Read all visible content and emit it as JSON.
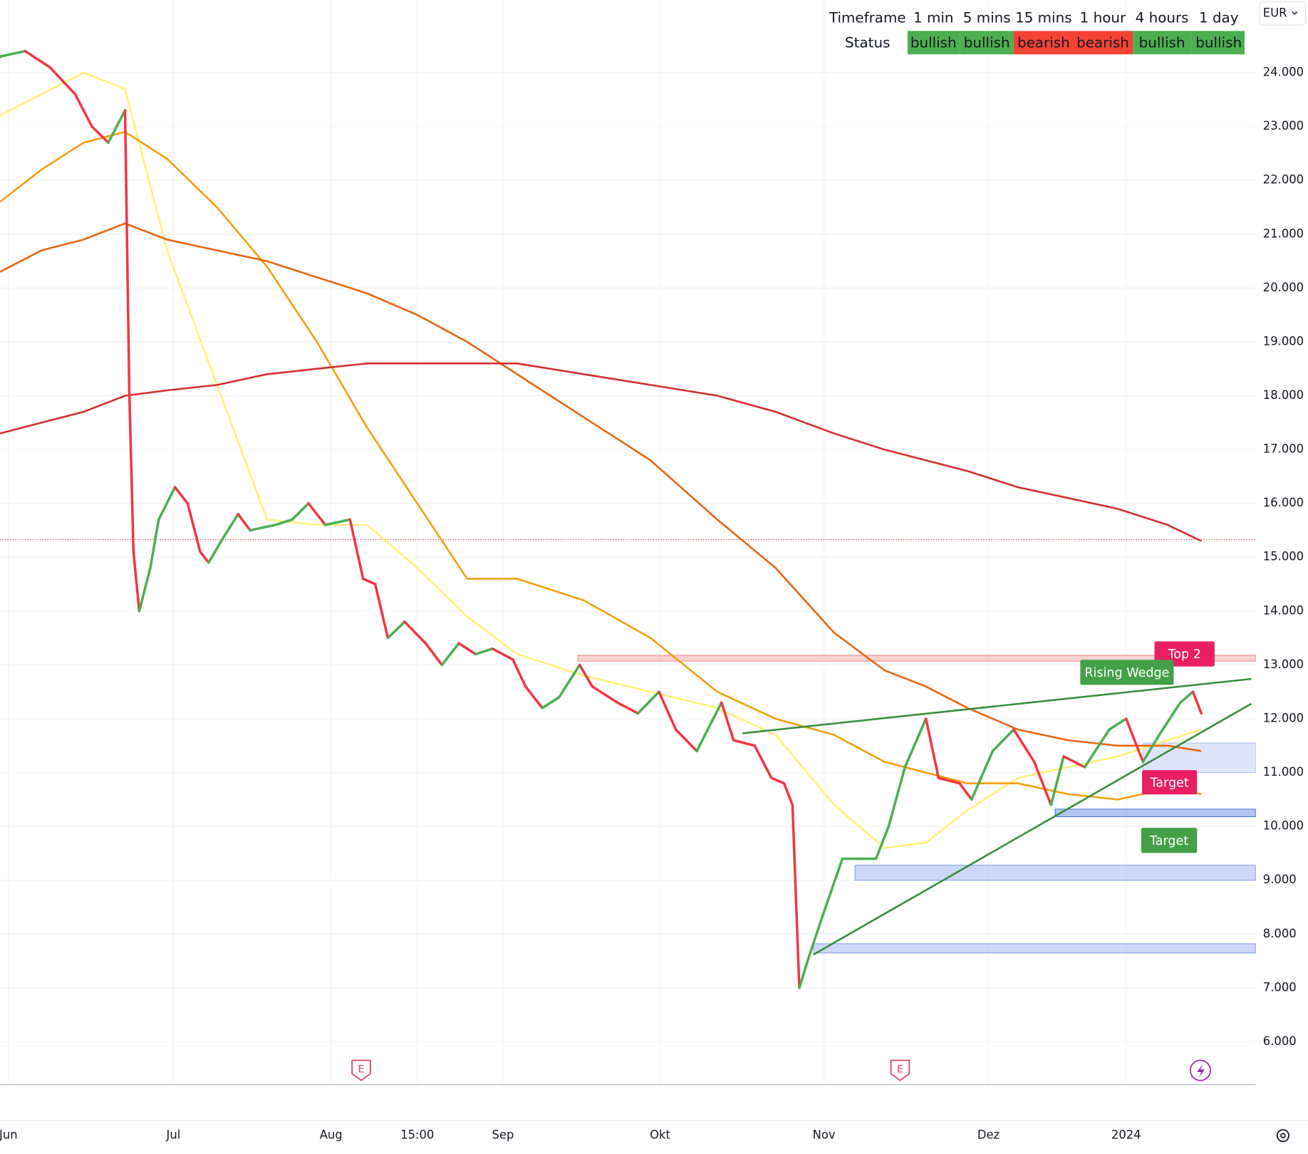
{
  "chart_data": {
    "type": "line",
    "currency": "EUR",
    "xlim": [
      -1.6,
      237.3
    ],
    "ylim": [
      5.22,
      25.35
    ],
    "xticks": [
      {
        "value": 0,
        "label": "Jun"
      },
      {
        "value": 31.4,
        "label": "Jul"
      },
      {
        "value": 61.4,
        "label": "Aug"
      },
      {
        "value": 77.8,
        "label": "15:00"
      },
      {
        "value": 94.1,
        "label": "Sep"
      },
      {
        "value": 124,
        "label": "Okt"
      },
      {
        "value": 155.2,
        "label": "Nov"
      },
      {
        "value": 186.5,
        "label": "Dez"
      },
      {
        "value": 212.7,
        "label": "2024"
      }
    ],
    "yticks": [
      {
        "value": 6,
        "label": "6.000"
      },
      {
        "value": 7,
        "label": "7.000"
      },
      {
        "value": 8,
        "label": "8.000"
      },
      {
        "value": 9,
        "label": "9.000"
      },
      {
        "value": 10,
        "label": "10.000"
      },
      {
        "value": 11,
        "label": "11.000"
      },
      {
        "value": 12,
        "label": "12.000"
      },
      {
        "value": 13,
        "label": "13.000"
      },
      {
        "value": 14,
        "label": "14.000"
      },
      {
        "value": 15,
        "label": "15.000"
      },
      {
        "value": 16,
        "label": "16.000"
      },
      {
        "value": 17,
        "label": "17.000"
      },
      {
        "value": 18,
        "label": "18.000"
      },
      {
        "value": 19,
        "label": "19.000"
      },
      {
        "value": 20,
        "label": "20.000"
      },
      {
        "value": 21,
        "label": "21.000"
      },
      {
        "value": 22,
        "label": "22.000"
      },
      {
        "value": 23,
        "label": "23.000"
      },
      {
        "value": 24,
        "label": "24.000"
      }
    ],
    "grid": true,
    "price": {
      "up_color": "#4caf50",
      "down_color": "#f23645",
      "x": [
        -1.6,
        3.2,
        7.9,
        12.7,
        15.9,
        19,
        22.2,
        23,
        23.8,
        24.9,
        27,
        28.6,
        31.7,
        34.1,
        36.5,
        38.1,
        40.5,
        43.7,
        46,
        50.8,
        54,
        57.1,
        60.3,
        65,
        67.5,
        69.8,
        72.2,
        75.4,
        79.4,
        82.5,
        85.7,
        88.9,
        92.1,
        96,
        98.4,
        101.6,
        104.8,
        108.7,
        111.1,
        115.9,
        119.8,
        123.8,
        127,
        131,
        135.7,
        138,
        142,
        145.2,
        147.6,
        149.2,
        150.5,
        152.4,
        154.8,
        158.7,
        161.9,
        165.1,
        167.5,
        170.6,
        174.6,
        177,
        181,
        183.3,
        187.3,
        191.3,
        195.2,
        198.4,
        200.8,
        204.8,
        209.5,
        212.7,
        215.9,
        219,
        223,
        225.4,
        227
      ],
      "values": [
        24.3,
        24.4,
        24.1,
        23.6,
        23.0,
        22.7,
        23.3,
        18.1,
        15.1,
        14.0,
        14.8,
        15.7,
        16.3,
        16.0,
        15.1,
        14.9,
        15.3,
        15.8,
        15.5,
        15.6,
        15.7,
        16.0,
        15.6,
        15.7,
        14.6,
        14.5,
        13.5,
        13.8,
        13.4,
        13.0,
        13.4,
        13.2,
        13.3,
        13.1,
        12.6,
        12.2,
        12.4,
        13.0,
        12.6,
        12.3,
        12.1,
        12.5,
        11.8,
        11.4,
        12.3,
        11.6,
        11.5,
        10.9,
        10.8,
        10.4,
        7.0,
        7.6,
        8.3,
        9.4,
        9.4,
        9.4,
        10.0,
        11.1,
        12.0,
        10.9,
        10.8,
        10.5,
        11.4,
        11.8,
        11.2,
        10.4,
        11.3,
        11.1,
        11.8,
        12.0,
        11.2,
        11.7,
        12.3,
        12.5,
        12.1
      ]
    },
    "price_line": {
      "value": 15.33,
      "color": "#b71c1c"
    },
    "series": [
      {
        "color": "#fff176",
        "x": [
          -1.6,
          6.3,
          14.3,
          22.2,
          30.2,
          39.7,
          49.2,
          58.7,
          68.3,
          77.8,
          87.3,
          96.8,
          109.5,
          122.2,
          134.9,
          146,
          157.1,
          166.7,
          174.6,
          182.5,
          192.1,
          201.6,
          211.1,
          220.6,
          227
        ],
        "values": [
          23.2,
          23.6,
          24.0,
          23.7,
          20.7,
          18.2,
          15.7,
          15.6,
          15.6,
          14.8,
          13.9,
          13.2,
          12.8,
          12.5,
          12.2,
          11.7,
          10.4,
          9.6,
          9.7,
          10.3,
          10.9,
          11.1,
          11.3,
          11.6,
          11.8
        ]
      },
      {
        "color": "#f59e0b",
        "x": [
          -1.6,
          6.3,
          14.3,
          22.2,
          30.2,
          39.7,
          49.2,
          58.7,
          68.3,
          77.8,
          87.3,
          96.8,
          109.5,
          122.2,
          134.9,
          146,
          157.1,
          166.7,
          174.6,
          182.5,
          192.1,
          201.6,
          211.1,
          220.6,
          227
        ],
        "values": [
          21.6,
          22.2,
          22.7,
          22.9,
          22.4,
          21.5,
          20.4,
          19.0,
          17.4,
          16.0,
          14.6,
          14.6,
          14.2,
          13.5,
          12.5,
          12.0,
          11.7,
          11.2,
          11.0,
          10.8,
          10.8,
          10.6,
          10.5,
          10.7,
          10.6
        ]
      },
      {
        "color": "#e8650f",
        "x": [
          -1.6,
          6.3,
          14.3,
          22.2,
          30.2,
          39.7,
          49.2,
          58.7,
          68.3,
          77.8,
          87.3,
          96.8,
          109.5,
          122.2,
          134.9,
          146,
          157.1,
          166.7,
          174.6,
          182.5,
          192.1,
          201.6,
          211.1,
          220.6,
          227
        ],
        "values": [
          20.3,
          20.7,
          20.9,
          21.2,
          20.9,
          20.7,
          20.5,
          20.2,
          19.9,
          19.5,
          19.0,
          18.4,
          17.6,
          16.8,
          15.7,
          14.8,
          13.6,
          12.9,
          12.6,
          12.2,
          11.8,
          11.6,
          11.5,
          11.5,
          11.4
        ]
      },
      {
        "color": "#d32f2f",
        "x": [
          -1.6,
          6.3,
          14.3,
          22.2,
          30.2,
          39.7,
          49.2,
          58.7,
          68.3,
          77.8,
          87.3,
          96.8,
          109.5,
          122.2,
          134.9,
          146,
          157.1,
          166.7,
          174.6,
          182.5,
          192.1,
          201.6,
          211.1,
          220.6,
          227
        ],
        "values": [
          17.3,
          17.5,
          17.7,
          18.0,
          18.1,
          18.2,
          18.4,
          18.5,
          18.6,
          18.6,
          18.6,
          18.6,
          18.4,
          18.2,
          18.0,
          17.7,
          17.3,
          17.0,
          16.8,
          16.6,
          16.3,
          16.1,
          15.9,
          15.6,
          15.3
        ]
      }
    ],
    "zones": [
      {
        "x0": 108.4,
        "low": 13.07,
        "high": 13.18,
        "color": "#ef9a9a"
      },
      {
        "x0": 161.1,
        "low": 9.0,
        "high": 9.28,
        "color": "#90a8f0"
      },
      {
        "x0": 153.2,
        "low": 7.65,
        "high": 7.82,
        "color": "#90a8f0"
      },
      {
        "x0": 199.2,
        "low": 10.18,
        "high": 10.32,
        "color": "#5c7fe0"
      },
      {
        "x0": 215.9,
        "low": 11.0,
        "high": 11.55,
        "color": "#b8c8f5"
      }
    ],
    "trendlines": [
      {
        "x": [
          139.7,
          236.5
        ],
        "values": [
          11.73,
          12.74
        ],
        "color": "#388e3c"
      },
      {
        "x": [
          153.2,
          236.5
        ],
        "values": [
          7.62,
          12.28
        ],
        "color": "#388e3c"
      }
    ],
    "annotations": [
      {
        "text": "Top 2",
        "color": "#e91e63"
      },
      {
        "text": "Rising Wedge",
        "color": "#43a047"
      },
      {
        "text": "Target",
        "color": "#e91e63"
      },
      {
        "text": "Target",
        "color": "#43a047"
      }
    ],
    "status_table": {
      "header": [
        "Timeframe",
        "1 min",
        "5 mins",
        "15 mins",
        "1 hour",
        "4 hours",
        "1 day"
      ],
      "row": [
        "Status",
        "bullish",
        "bullish",
        "bearish",
        "bearish",
        "bullish",
        "bullish"
      ],
      "cell_colors": [
        "#4caf50",
        "#4caf50",
        "#f44336",
        "#f44336",
        "#4caf50",
        "#4caf50"
      ]
    }
  }
}
